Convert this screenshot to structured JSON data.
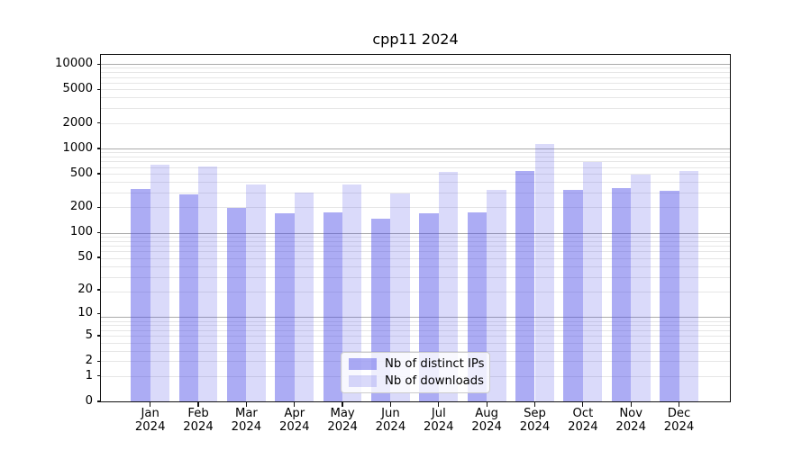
{
  "chart_data": {
    "type": "bar",
    "title": "cpp11 2024",
    "categories": [
      "Jan 2024",
      "Feb 2024",
      "Mar 2024",
      "Apr 2024",
      "May 2024",
      "Jun 2024",
      "Jul 2024",
      "Aug 2024",
      "Sep 2024",
      "Oct 2024",
      "Nov 2024",
      "Dec 2024"
    ],
    "series": [
      {
        "name": "Nb of distinct IPs",
        "color": "rgba(70,70,230,0.45)",
        "values": [
          330,
          285,
          196,
          170,
          172,
          145,
          169,
          175,
          540,
          320,
          340,
          315
        ]
      },
      {
        "name": "Nb of downloads",
        "color": "rgba(70,70,230,0.20)",
        "values": [
          645,
          605,
          372,
          300,
          372,
          288,
          525,
          320,
          1120,
          684,
          488,
          535
        ]
      }
    ],
    "xlabel": "",
    "ylabel": "",
    "yscale": "log10(1+y)",
    "yticks": [
      0,
      1,
      2,
      5,
      10,
      20,
      50,
      100,
      200,
      500,
      1000,
      2000,
      5000,
      10000
    ],
    "ylim": [
      0,
      12500
    ],
    "grid": "both",
    "legend_position": "lower center",
    "colors": {
      "major_grid": "#ababab",
      "minor_grid": "#e6e6e6",
      "spine": "#111111",
      "background": "#ffffff"
    }
  },
  "legend": {
    "items": [
      "Nb of distinct IPs",
      "Nb of downloads"
    ]
  }
}
